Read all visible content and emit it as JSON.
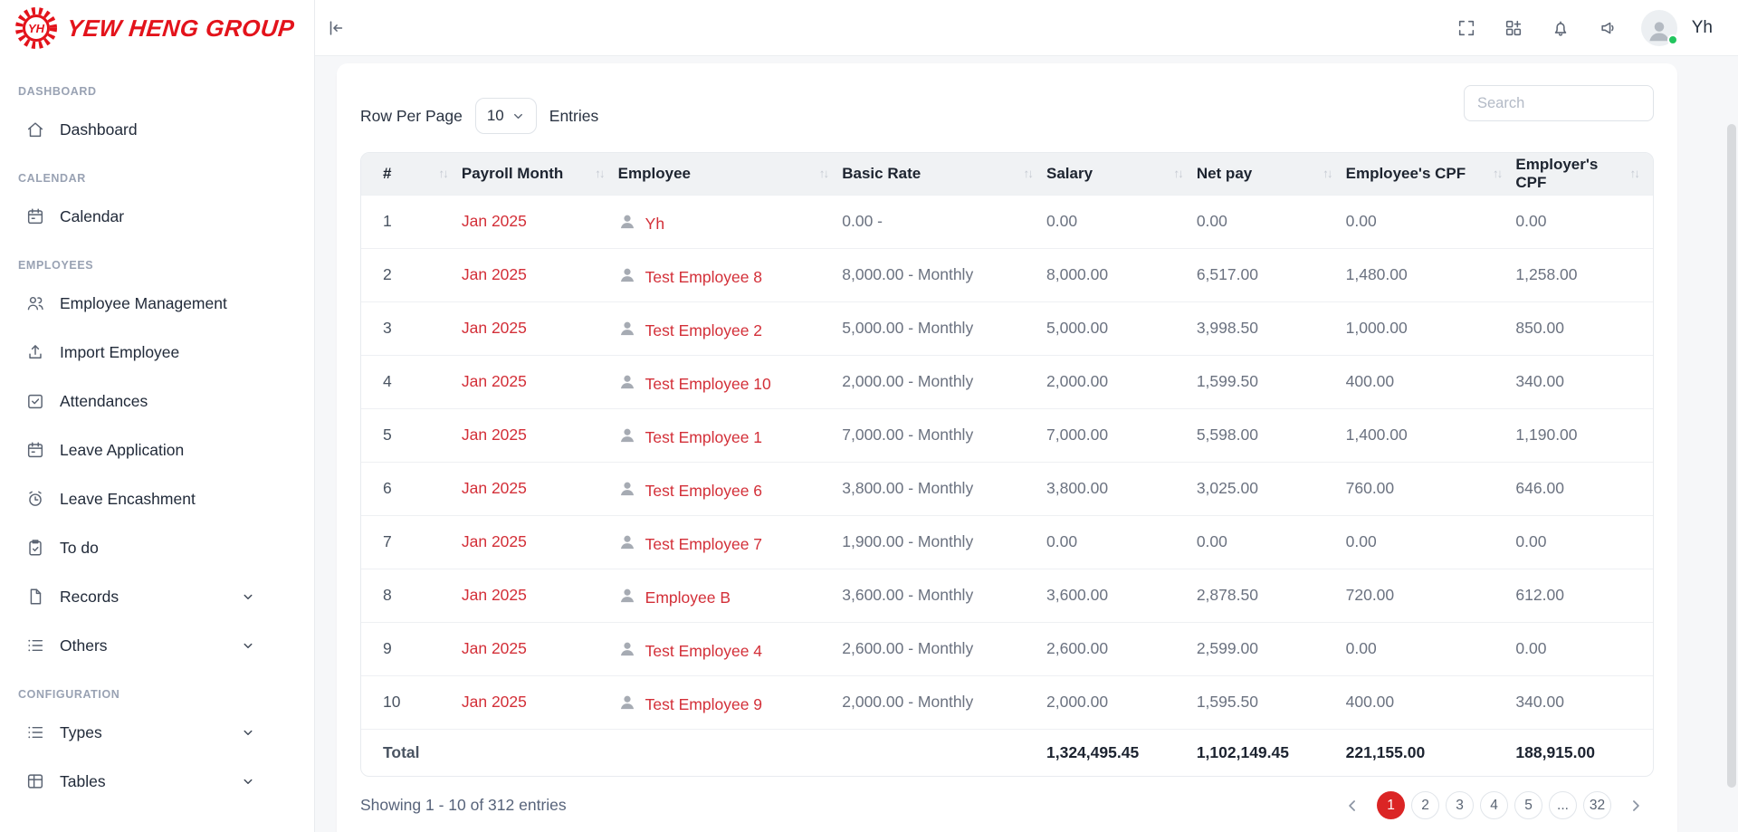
{
  "brand": {
    "name": "Yew Heng Group"
  },
  "header": {
    "user": {
      "name": "Yh",
      "status": "online"
    }
  },
  "sidebar": {
    "sections": [
      {
        "label": "Dashboard",
        "items": [
          {
            "label": "Dashboard",
            "icon": "home-icon",
            "expandable": false
          }
        ]
      },
      {
        "label": "Calendar",
        "items": [
          {
            "label": "Calendar",
            "icon": "calendar-icon",
            "expandable": false
          }
        ]
      },
      {
        "label": "Employees",
        "items": [
          {
            "label": "Employee Management",
            "icon": "users-icon",
            "expandable": false
          },
          {
            "label": "Import Employee",
            "icon": "upload-icon",
            "expandable": false
          },
          {
            "label": "Attendances",
            "icon": "check-square-icon",
            "expandable": false
          },
          {
            "label": "Leave Application",
            "icon": "calendar-icon",
            "expandable": false
          },
          {
            "label": "Leave Encashment",
            "icon": "alarm-clock-icon",
            "expandable": false
          },
          {
            "label": "To do",
            "icon": "clipboard-icon",
            "expandable": false
          },
          {
            "label": "Records",
            "icon": "file-icon",
            "expandable": true
          },
          {
            "label": "Others",
            "icon": "list-icon",
            "expandable": true
          }
        ]
      },
      {
        "label": "Configuration",
        "items": [
          {
            "label": "Types",
            "icon": "list-icon",
            "expandable": true
          },
          {
            "label": "Tables",
            "icon": "table-icon",
            "expandable": true
          }
        ]
      }
    ]
  },
  "toolbar": {
    "row_per_page_label": "Row Per Page",
    "row_per_page_value": "10",
    "entries_label": "Entries",
    "search_placeholder": "Search"
  },
  "table": {
    "columns": [
      "#",
      "Payroll Month",
      "Employee",
      "Basic Rate",
      "Salary",
      "Net pay",
      "Employee's CPF",
      "Employer's CPF"
    ],
    "rows": [
      {
        "num": "1",
        "payroll_month": "Jan 2025",
        "employee": "Yh",
        "basic_rate": "0.00 -",
        "salary": "0.00",
        "net_pay": "0.00",
        "employee_cpf": "0.00",
        "employer_cpf": "0.00"
      },
      {
        "num": "2",
        "payroll_month": "Jan 2025",
        "employee": "Test Employee 8",
        "basic_rate": "8,000.00 - Monthly",
        "salary": "8,000.00",
        "net_pay": "6,517.00",
        "employee_cpf": "1,480.00",
        "employer_cpf": "1,258.00"
      },
      {
        "num": "3",
        "payroll_month": "Jan 2025",
        "employee": "Test Employee 2",
        "basic_rate": "5,000.00 - Monthly",
        "salary": "5,000.00",
        "net_pay": "3,998.50",
        "employee_cpf": "1,000.00",
        "employer_cpf": "850.00"
      },
      {
        "num": "4",
        "payroll_month": "Jan 2025",
        "employee": "Test Employee 10",
        "basic_rate": "2,000.00 - Monthly",
        "salary": "2,000.00",
        "net_pay": "1,599.50",
        "employee_cpf": "400.00",
        "employer_cpf": "340.00"
      },
      {
        "num": "5",
        "payroll_month": "Jan 2025",
        "employee": "Test Employee 1",
        "basic_rate": "7,000.00 - Monthly",
        "salary": "7,000.00",
        "net_pay": "5,598.00",
        "employee_cpf": "1,400.00",
        "employer_cpf": "1,190.00"
      },
      {
        "num": "6",
        "payroll_month": "Jan 2025",
        "employee": "Test Employee 6",
        "basic_rate": "3,800.00 - Monthly",
        "salary": "3,800.00",
        "net_pay": "3,025.00",
        "employee_cpf": "760.00",
        "employer_cpf": "646.00"
      },
      {
        "num": "7",
        "payroll_month": "Jan 2025",
        "employee": "Test Employee 7",
        "basic_rate": "1,900.00 - Monthly",
        "salary": "0.00",
        "net_pay": "0.00",
        "employee_cpf": "0.00",
        "employer_cpf": "0.00"
      },
      {
        "num": "8",
        "payroll_month": "Jan 2025",
        "employee": "Employee B",
        "basic_rate": "3,600.00 - Monthly",
        "salary": "3,600.00",
        "net_pay": "2,878.50",
        "employee_cpf": "720.00",
        "employer_cpf": "612.00"
      },
      {
        "num": "9",
        "payroll_month": "Jan 2025",
        "employee": "Test Employee 4",
        "basic_rate": "2,600.00 - Monthly",
        "salary": "2,600.00",
        "net_pay": "2,599.00",
        "employee_cpf": "0.00",
        "employer_cpf": "0.00"
      },
      {
        "num": "10",
        "payroll_month": "Jan 2025",
        "employee": "Test Employee 9",
        "basic_rate": "2,000.00 - Monthly",
        "salary": "2,000.00",
        "net_pay": "1,595.50",
        "employee_cpf": "400.00",
        "employer_cpf": "340.00"
      }
    ],
    "total": {
      "label": "Total",
      "salary": "1,324,495.45",
      "net_pay": "1,102,149.45",
      "employee_cpf": "221,155.00",
      "employer_cpf": "188,915.00"
    }
  },
  "footer": {
    "showing": "Showing 1 - 10 of 312 entries",
    "pages": [
      "1",
      "2",
      "3",
      "4",
      "5",
      "...",
      "32"
    ],
    "active_page": "1"
  },
  "colors": {
    "logo_red": "#e3131b",
    "link_red": "#d32f38",
    "active_page_red": "#db2525",
    "status_green": "#22c55e"
  }
}
